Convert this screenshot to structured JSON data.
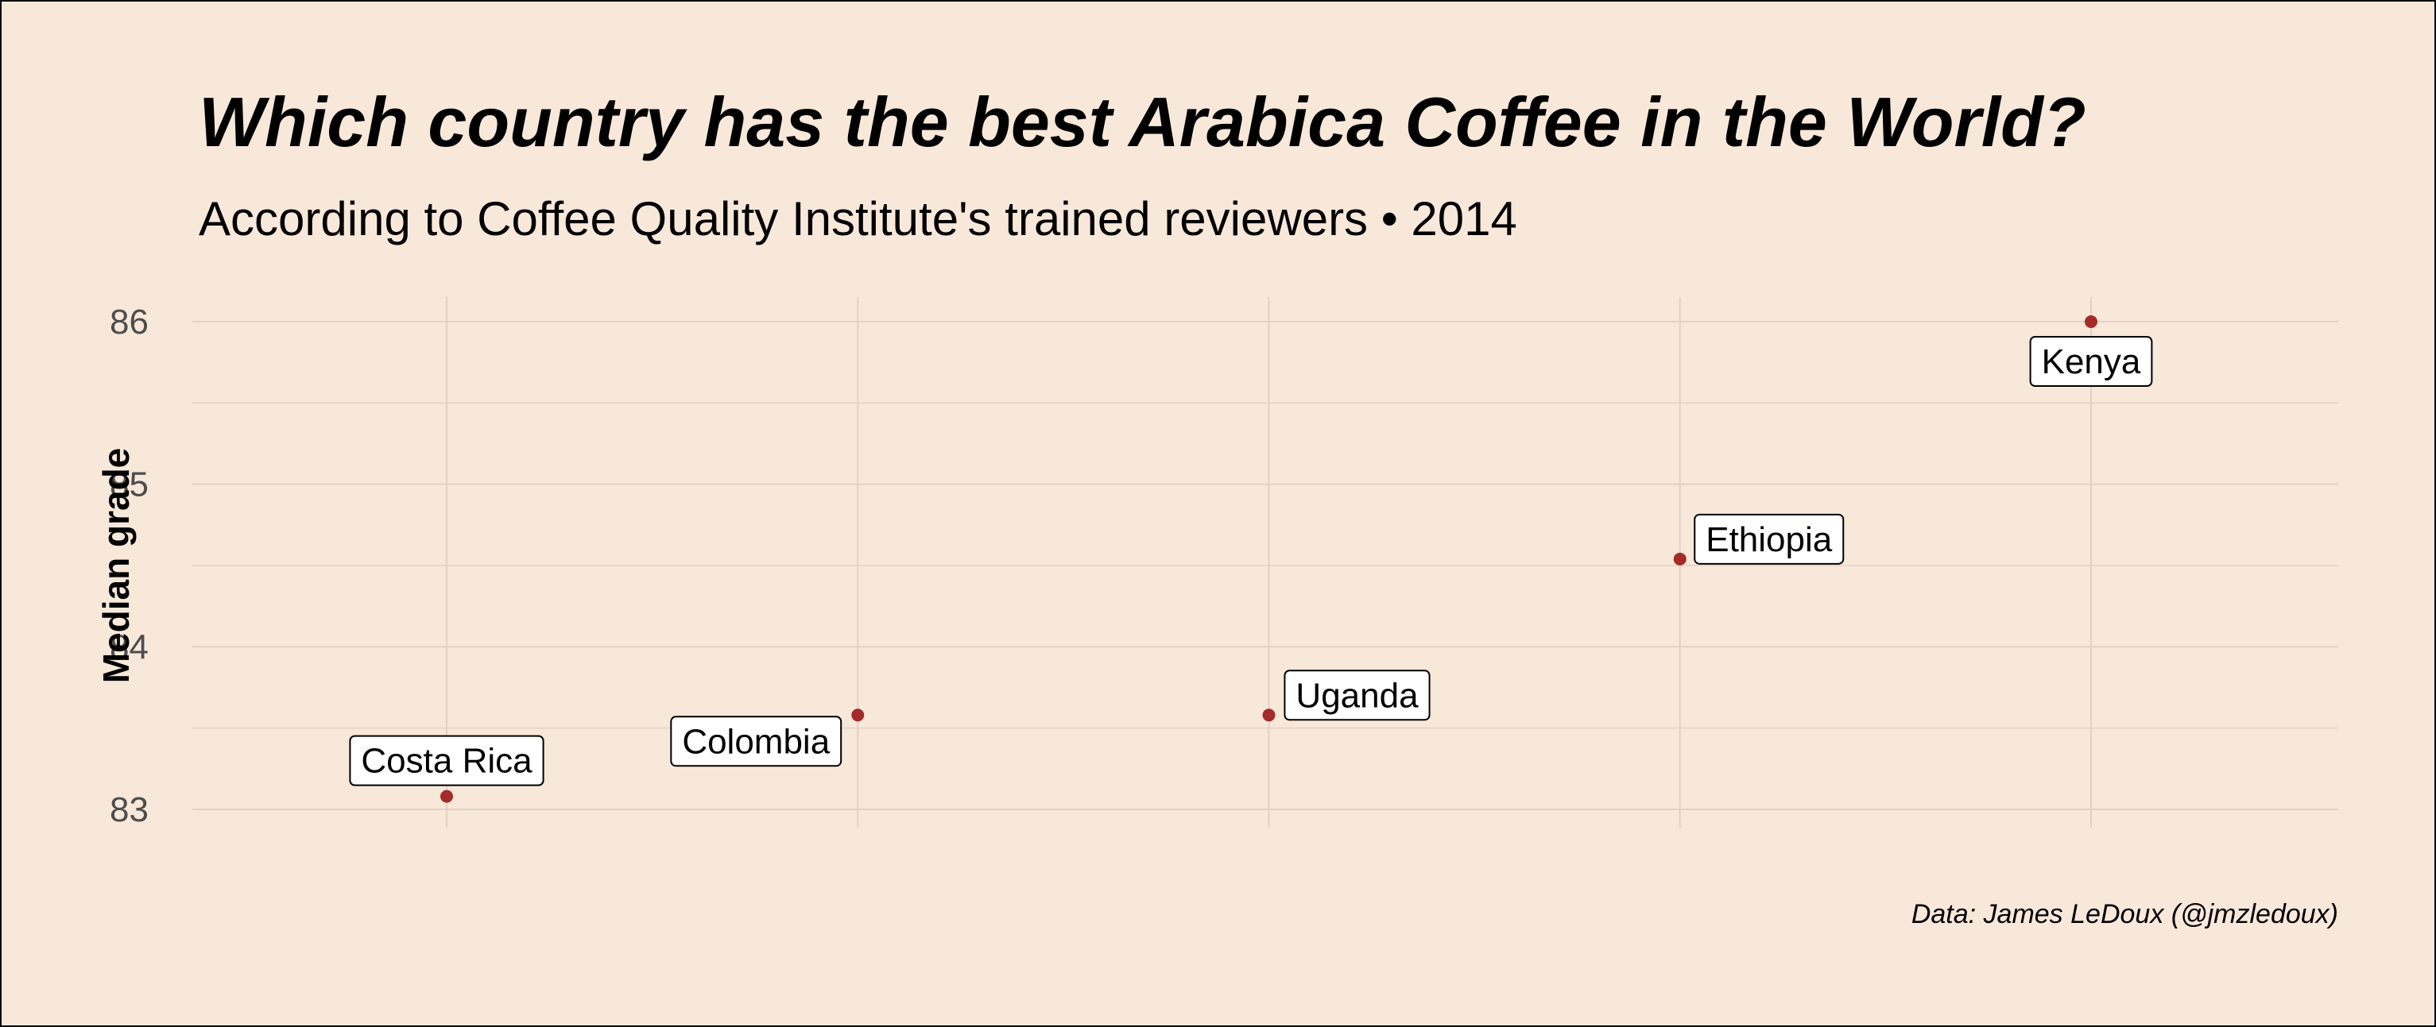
{
  "title": "Which country has the best Arabica Coffee in the World?",
  "subtitle": "According to Coffee Quality Institute's trained reviewers • 2014",
  "caption": "Data: James LeDoux (@jmzledoux)",
  "colors": {
    "background": "#f8e8da",
    "point": "#a52a2a",
    "grid": "#e3d2c3",
    "label_fill": "#ffffff",
    "label_border": "#000000",
    "tick_text": "#4d4d4d"
  },
  "chart_data": {
    "type": "scatter",
    "title": "Which country has the best Arabica Coffee in the World?",
    "subtitle": "According to Coffee Quality Institute's trained reviewers • 2014",
    "xlabel": "",
    "ylabel": "Median grade",
    "categories": [
      "Costa Rica",
      "Colombia",
      "Uganda",
      "Ethiopia",
      "Kenya"
    ],
    "values": [
      83.08,
      83.58,
      83.58,
      84.54,
      86.0
    ],
    "ylim": [
      82.85,
      86.15
    ],
    "y_ticks": [
      83,
      84,
      85,
      86
    ],
    "grid": true,
    "legend": "none",
    "x_axis_labels_shown": false
  }
}
